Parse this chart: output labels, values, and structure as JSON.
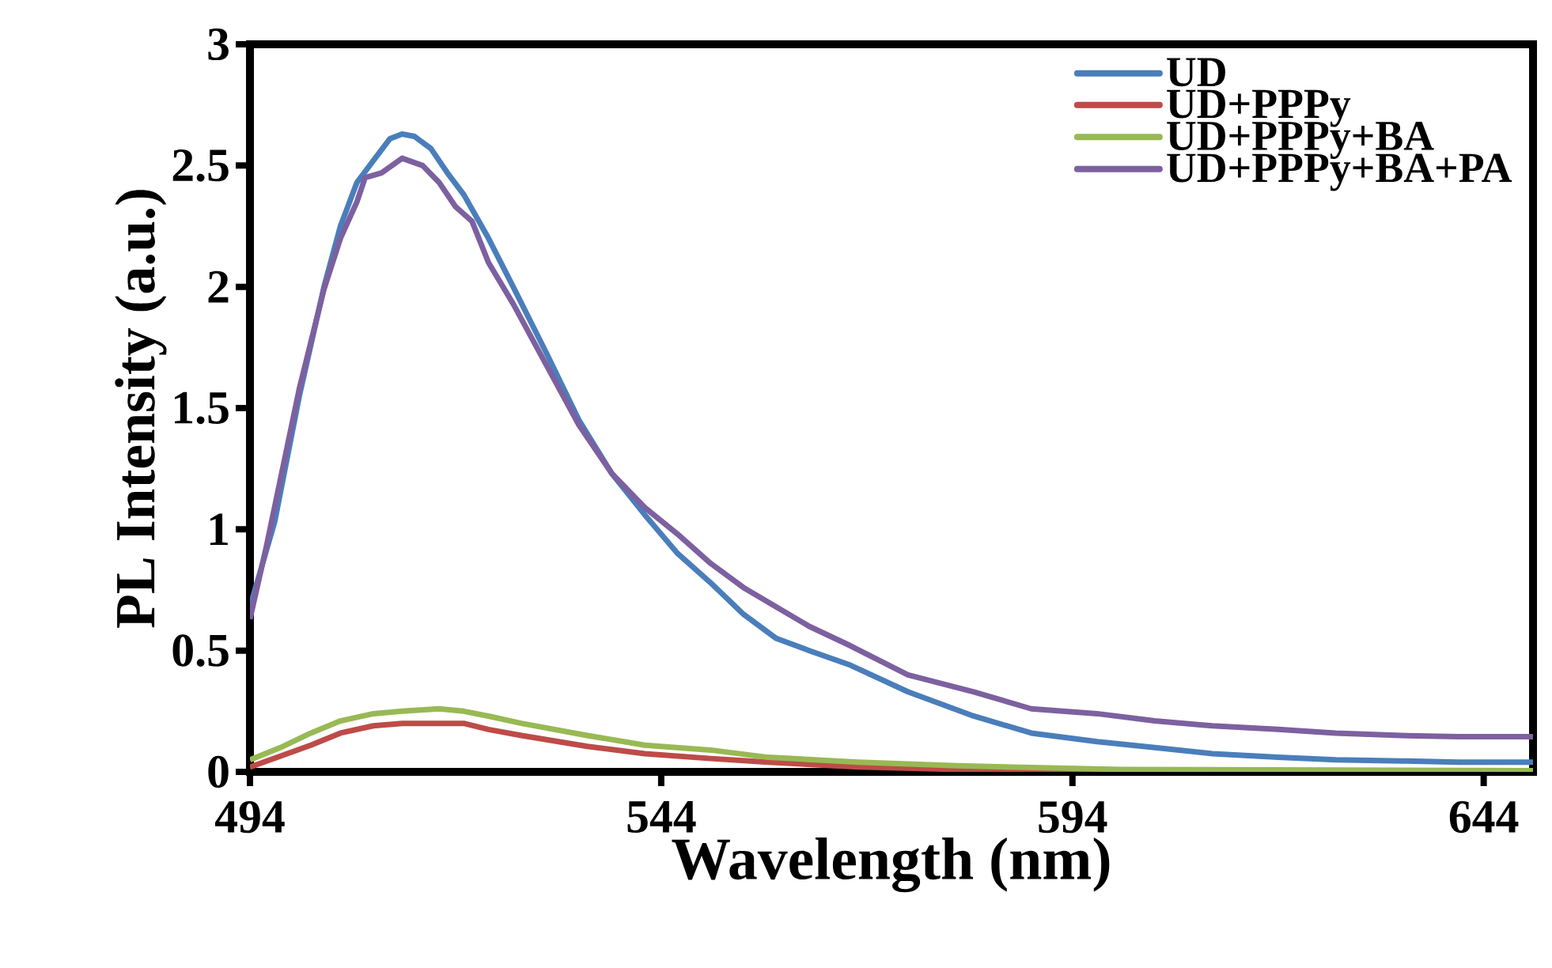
{
  "chart_data": {
    "type": "line",
    "xlabel": "Wavelength (nm)",
    "ylabel": "PL Intensity (a.u.)",
    "xlim": [
      494,
      650
    ],
    "ylim": [
      0,
      3
    ],
    "xticks": [
      494,
      544,
      594,
      644
    ],
    "yticks": [
      0,
      0.5,
      1,
      1.5,
      2,
      2.5,
      3
    ],
    "legend": "top right",
    "grid": false,
    "marker": "none",
    "line_style": "solid",
    "series": [
      {
        "name": "UD",
        "color": "#4a7ebb",
        "x": [
          494,
          497,
          500,
          503,
          505,
          507,
          509,
          511,
          512.5,
          514,
          516,
          518,
          520,
          523,
          526,
          530,
          534,
          538,
          542,
          546,
          550,
          554,
          558,
          562,
          567,
          574,
          582,
          589,
          597,
          604,
          611,
          619,
          626,
          634,
          641,
          650
        ],
        "values": [
          0.68,
          1.03,
          1.55,
          2.0,
          2.25,
          2.43,
          2.52,
          2.61,
          2.63,
          2.62,
          2.57,
          2.47,
          2.38,
          2.2,
          2.0,
          1.73,
          1.45,
          1.23,
          1.06,
          0.9,
          0.78,
          0.65,
          0.55,
          0.5,
          0.44,
          0.33,
          0.23,
          0.16,
          0.125,
          0.1,
          0.075,
          0.06,
          0.05,
          0.045,
          0.04,
          0.04
        ]
      },
      {
        "name": "UD+PPPy",
        "color": "#be4b48",
        "x": [
          494,
          501.4,
          505,
          509,
          512.5,
          516,
          520,
          523,
          527,
          535,
          542,
          550,
          557,
          568,
          580,
          600,
          620,
          650
        ],
        "values": [
          0.02,
          0.11,
          0.16,
          0.19,
          0.2,
          0.2,
          0.2,
          0.175,
          0.15,
          0.105,
          0.075,
          0.055,
          0.04,
          0.02,
          0.01,
          null,
          0,
          0
        ]
      },
      {
        "name": "UD+PPPy+BA",
        "color": "#98b954",
        "x": [
          494,
          497.7,
          501.4,
          505,
          509,
          512.5,
          517,
          520,
          523,
          527,
          535,
          542,
          550,
          557,
          568,
          580,
          600,
          650
        ],
        "values": [
          0.05,
          0.1,
          0.16,
          0.21,
          0.24,
          0.25,
          0.26,
          0.25,
          0.23,
          0.2,
          0.15,
          0.11,
          0.09,
          0.06,
          0.04,
          0.025,
          0.01,
          0.005
        ]
      },
      {
        "name": "UD+PPPy+BA+PA",
        "color": "#7d60a0",
        "x": [
          494,
          496,
          500,
          503,
          505,
          507,
          508,
          510,
          512.5,
          515,
          517,
          519,
          521,
          523,
          526,
          530,
          534,
          538,
          542,
          546,
          550,
          554,
          558,
          562,
          567,
          574,
          582,
          589,
          597,
          604,
          611,
          619,
          626,
          634,
          641,
          650
        ],
        "values": [
          0.63,
          0.93,
          1.58,
          1.99,
          2.2,
          2.35,
          2.45,
          2.47,
          2.53,
          2.5,
          2.43,
          2.33,
          2.27,
          2.1,
          1.93,
          1.68,
          1.43,
          1.23,
          1.09,
          0.98,
          0.86,
          0.76,
          0.68,
          0.6,
          0.52,
          0.4,
          0.33,
          0.26,
          0.24,
          0.21,
          0.19,
          0.175,
          0.16,
          0.15,
          0.145,
          0.145
        ]
      }
    ]
  }
}
